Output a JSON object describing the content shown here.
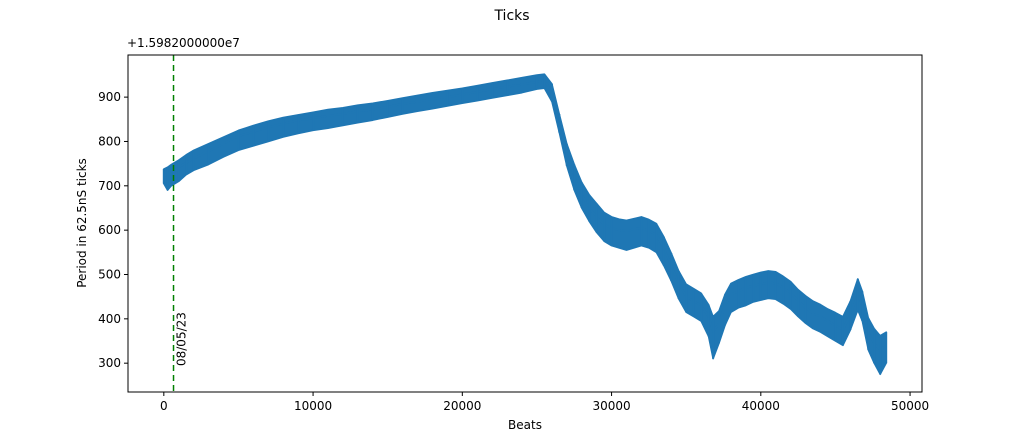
{
  "chart_data": {
    "type": "line",
    "title": "Ticks",
    "xlabel": "Beats",
    "ylabel": "Period in 62.5nS ticks",
    "y_offset_text": "+1.5982000000e7",
    "xlim": [
      -2400,
      50800
    ],
    "ylim": [
      235,
      995
    ],
    "x_ticks": [
      0,
      10000,
      20000,
      30000,
      40000,
      50000
    ],
    "y_ticks": [
      300,
      400,
      500,
      600,
      700,
      800,
      900
    ],
    "grid": false,
    "colors": {
      "series": "#1f77b4",
      "marker_line": "#008000"
    },
    "series": [
      {
        "x": [
          0,
          250,
          500,
          1000,
          1500,
          2000,
          3000,
          4000,
          5000,
          6000,
          7000,
          8000,
          9000,
          10000,
          11000,
          12000,
          13000,
          14000,
          15000,
          16000,
          17000,
          18000,
          19000,
          20000,
          21000,
          22000,
          23000,
          24000,
          25000,
          25500,
          26000,
          26500,
          27000,
          27500,
          28000,
          28500,
          29000,
          29500,
          30000,
          30500,
          31000,
          31500,
          32000,
          32500,
          33000,
          33500,
          34000,
          34500,
          35000,
          35500,
          36000,
          36500,
          36800,
          37200,
          37600,
          38000,
          38500,
          39000,
          39500,
          40000,
          40500,
          41000,
          41500,
          42000,
          42500,
          43000,
          43500,
          44000,
          44500,
          45000,
          45500,
          46000,
          46500,
          46800,
          47200,
          47600,
          48000,
          48400
        ],
        "y": [
          722,
          712,
          730,
          742,
          752,
          762,
          778,
          795,
          812,
          822,
          832,
          840,
          848,
          852,
          858,
          862,
          868,
          872,
          878,
          885,
          890,
          896,
          900,
          906,
          912,
          918,
          924,
          928,
          935,
          938,
          910,
          840,
          770,
          720,
          680,
          650,
          630,
          612,
          605,
          600,
          598,
          602,
          605,
          598,
          590,
          560,
          520,
          480,
          450,
          440,
          430,
          405,
          370,
          390,
          430,
          455,
          462,
          470,
          475,
          478,
          482,
          480,
          470,
          458,
          440,
          425,
          412,
          405,
          395,
          385,
          375,
          410,
          455,
          430,
          370,
          345,
          330,
          340
        ],
        "low": [
          705,
          690,
          700,
          710,
          725,
          735,
          748,
          765,
          780,
          790,
          800,
          810,
          818,
          825,
          830,
          836,
          842,
          848,
          855,
          862,
          868,
          874,
          880,
          886,
          892,
          898,
          904,
          910,
          918,
          920,
          890,
          820,
          745,
          690,
          650,
          620,
          595,
          575,
          565,
          560,
          555,
          560,
          565,
          560,
          550,
          520,
          485,
          445,
          415,
          405,
          395,
          360,
          310,
          345,
          385,
          415,
          425,
          430,
          438,
          442,
          446,
          444,
          434,
          422,
          405,
          390,
          378,
          370,
          360,
          350,
          340,
          375,
          420,
          395,
          330,
          300,
          275,
          300
        ],
        "high": [
          738,
          742,
          748,
          758,
          770,
          780,
          795,
          810,
          825,
          836,
          846,
          854,
          860,
          866,
          872,
          876,
          882,
          886,
          892,
          898,
          904,
          910,
          915,
          920,
          926,
          932,
          938,
          944,
          950,
          952,
          930,
          862,
          795,
          748,
          708,
          680,
          660,
          640,
          630,
          625,
          622,
          626,
          630,
          624,
          615,
          585,
          548,
          508,
          478,
          468,
          458,
          432,
          405,
          418,
          455,
          480,
          488,
          495,
          500,
          505,
          508,
          506,
          496,
          484,
          466,
          452,
          440,
          432,
          422,
          414,
          405,
          440,
          490,
          462,
          402,
          378,
          362,
          370
        ]
      }
    ],
    "vlines": [
      {
        "x": 650,
        "label": "08/05/23"
      }
    ]
  }
}
